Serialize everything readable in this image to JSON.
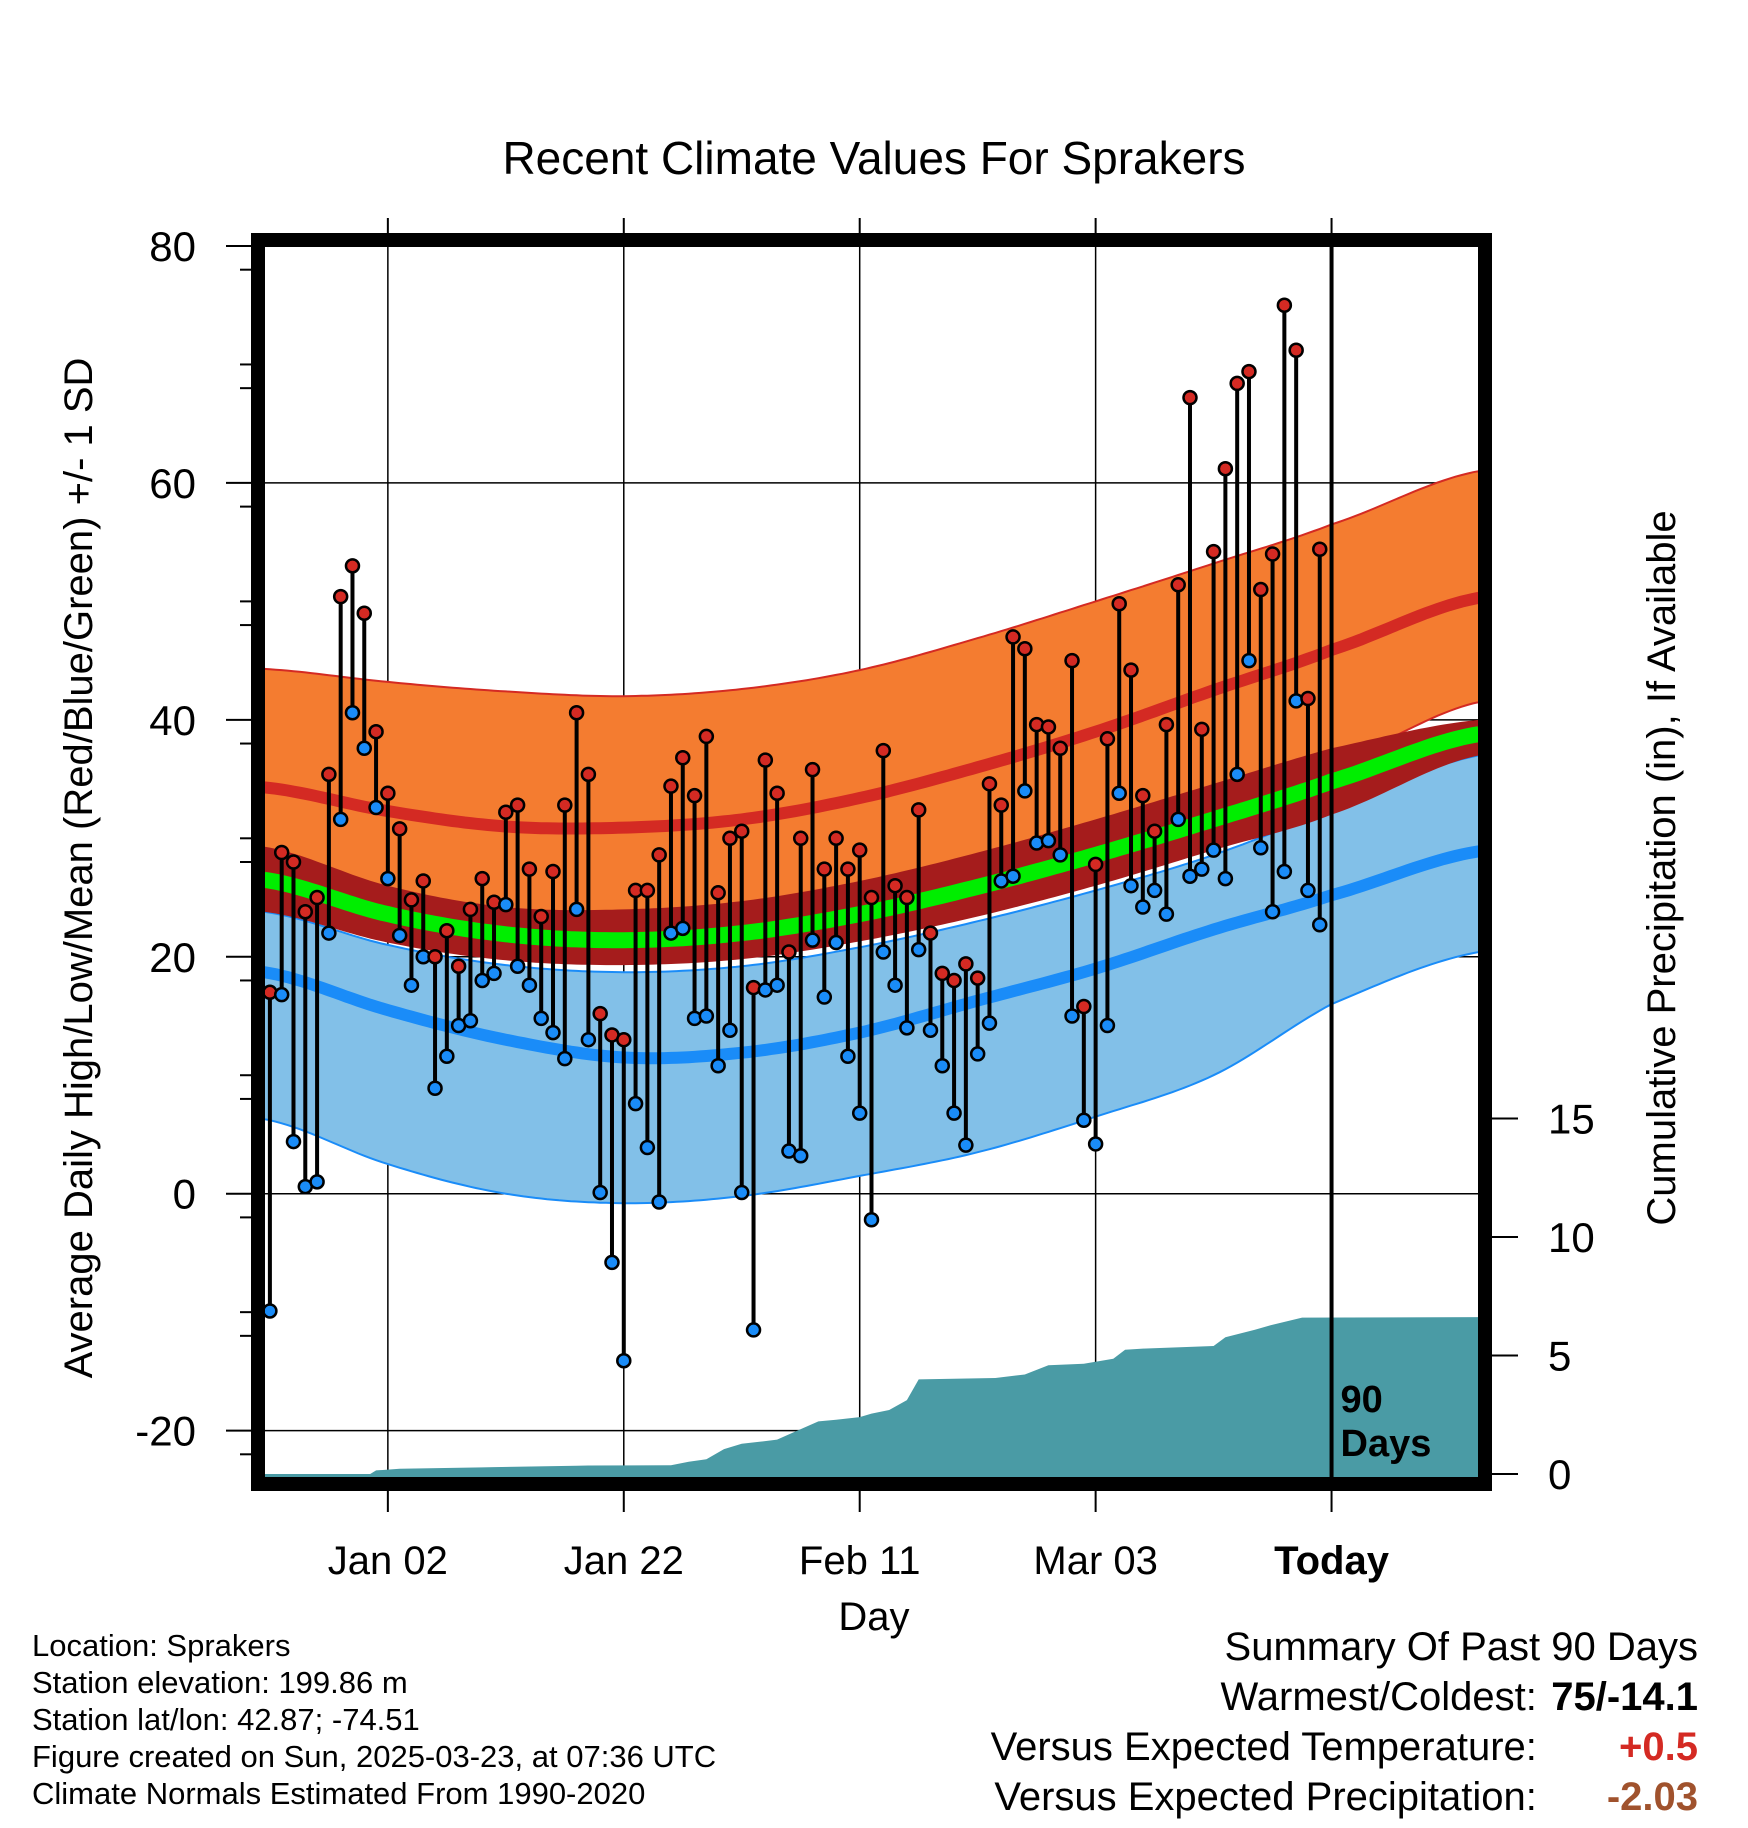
{
  "chart_data": {
    "type": "line",
    "title": "Recent Climate Values For Sprakers",
    "xlabel": "Day",
    "ylabel": "Average Daily High/Low/Mean (Red/Blue/Green) +/- 1 SD",
    "y2label": "Cumulative Precipitation (in), If Available",
    "ylim": [
      -24,
      80
    ],
    "y2lim": [
      0,
      20
    ],
    "xlim": [
      -10.5,
      92.5
    ],
    "yticks": [
      "80",
      "60",
      "40",
      "20",
      "0",
      "-20"
    ],
    "y2ticks": [
      "15",
      "10",
      "5",
      "0"
    ],
    "xticks": [
      {
        "pos": 0,
        "label": "Jan 02"
      },
      {
        "pos": 20,
        "label": "Jan 22"
      },
      {
        "pos": 40,
        "label": "Feb 11"
      },
      {
        "pos": 60,
        "label": "Mar 03"
      },
      {
        "pos": 80,
        "label": "Today"
      }
    ],
    "days_label": "90 Days",
    "grid": true,
    "colors": {
      "high_band": "#f47c30",
      "high_line": "#d42a23",
      "low_band": "#82c0e8",
      "low_line": "#1a8cf8",
      "mean_band": "#a51c1c",
      "mean_line": "#00ee00",
      "precip": "#4a9ba5",
      "high_marker": "#d42a23",
      "low_marker": "#1a8cf8",
      "summary_temp": "#d42a23",
      "summary_precip": "#a0522d"
    },
    "normals": {
      "x": [
        -10.5,
        0,
        10,
        20,
        30,
        40,
        50,
        60,
        70,
        80,
        92.5
      ],
      "high_upper": [
        44.3,
        43.2,
        42.4,
        42.0,
        42.6,
        44.2,
        46.9,
        50.0,
        53.2,
        56.5,
        61.0
      ],
      "high_mean": [
        34.3,
        32.3,
        31.0,
        30.9,
        31.6,
        33.4,
        36.0,
        39.0,
        42.5,
        45.9,
        50.3
      ],
      "high_lower": [
        24.3,
        21.8,
        20.1,
        19.7,
        20.7,
        22.9,
        25.9,
        29.5,
        32.8,
        36.2,
        41.5
      ],
      "mean_upper": [
        29.3,
        26.0,
        24.2,
        24.0,
        24.7,
        26.4,
        28.8,
        31.6,
        34.6,
        37.6,
        40.0
      ],
      "mean_mean": [
        26.5,
        23.6,
        21.9,
        21.4,
        22.0,
        23.6,
        25.9,
        28.6,
        31.6,
        34.8,
        38.8
      ],
      "mean_lower": [
        23.8,
        21.2,
        19.7,
        19.3,
        19.8,
        21.3,
        23.4,
        26.0,
        29.0,
        32.0,
        37.0
      ],
      "low_upper": [
        23.8,
        21.0,
        19.3,
        18.7,
        19.2,
        20.8,
        23.0,
        25.6,
        28.6,
        32.5,
        37.0
      ],
      "low_mean": [
        18.7,
        15.5,
        13.0,
        11.5,
        11.9,
        13.6,
        16.3,
        19.0,
        22.3,
        25.2,
        28.9
      ],
      "low_lower": [
        6.3,
        2.5,
        0.0,
        -0.8,
        -0.2,
        1.5,
        3.5,
        6.5,
        10.0,
        16.0,
        20.4
      ]
    },
    "daily": {
      "x_start": -10,
      "high": [
        17.0,
        28.8,
        28.0,
        23.8,
        25.0,
        35.4,
        50.4,
        53.0,
        49.0,
        39.0,
        33.8,
        30.8,
        24.8,
        26.4,
        20.0,
        22.2,
        19.2,
        24.0,
        26.6,
        24.6,
        32.2,
        32.8,
        27.4,
        23.4,
        27.2,
        32.8,
        40.6,
        35.4,
        15.2,
        13.4,
        13.0,
        25.6,
        25.6,
        28.6,
        34.4,
        36.8,
        33.6,
        38.6,
        25.4,
        30.0,
        30.6,
        17.4,
        36.6,
        33.8,
        20.4,
        30.0,
        35.8,
        27.4,
        30.0,
        27.4,
        29.0,
        25.0,
        37.4,
        26.0,
        25.0,
        32.4,
        22.0,
        18.6,
        18.0,
        19.4,
        18.2,
        34.6,
        32.8,
        47.0,
        46.0,
        39.6,
        39.4,
        37.6,
        45.0,
        15.8,
        27.8,
        38.4,
        49.8,
        44.2,
        33.6,
        30.6,
        39.6,
        51.4,
        67.2,
        39.2,
        54.2,
        61.2,
        68.4,
        69.4,
        51.0,
        54.0,
        75.0,
        71.2,
        41.8,
        54.4
      ],
      "low": [
        -9.9,
        16.8,
        4.4,
        0.6,
        1.0,
        22.0,
        31.6,
        40.6,
        37.6,
        32.6,
        26.6,
        21.8,
        17.6,
        20.0,
        8.9,
        11.6,
        14.2,
        14.6,
        18.0,
        18.6,
        24.4,
        19.2,
        17.6,
        14.8,
        13.6,
        11.4,
        24.0,
        13.0,
        0.1,
        -5.8,
        -14.1,
        7.6,
        3.9,
        -0.7,
        22.0,
        22.4,
        14.8,
        15.0,
        10.8,
        13.8,
        0.1,
        -11.5,
        17.2,
        17.6,
        3.6,
        3.2,
        21.4,
        16.6,
        21.2,
        11.6,
        6.8,
        -2.2,
        20.4,
        17.6,
        14.0,
        20.6,
        13.8,
        10.8,
        6.8,
        4.1,
        11.8,
        14.4,
        26.4,
        26.8,
        34.0,
        29.6,
        29.8,
        28.6,
        15.0,
        6.2,
        4.2,
        14.2,
        33.8,
        26.0,
        24.2,
        25.6,
        23.6,
        31.6,
        26.8,
        27.4,
        29.0,
        26.6,
        35.4,
        45.0,
        29.2,
        23.8,
        27.2,
        41.6,
        25.6,
        22.7
      ]
    },
    "precip": {
      "x": [
        -10.5,
        -1.5,
        -1.0,
        1.0,
        8.0,
        9.0,
        16.0,
        17.0,
        24.0,
        25.5,
        27.0,
        28.5,
        30.0,
        31.5,
        33.0,
        34.5,
        36.5,
        38.0,
        40.0,
        41.0,
        42.5,
        44.0,
        45.0,
        51.5,
        54.0,
        56.0,
        59.0,
        61.5,
        62.5,
        64.0,
        70.0,
        71.0,
        73.5,
        75.0,
        77.5,
        92.5
      ],
      "y": [
        0.0,
        0.0,
        0.15,
        0.22,
        0.28,
        0.29,
        0.35,
        0.36,
        0.37,
        0.52,
        0.62,
        1.05,
        1.28,
        1.36,
        1.45,
        1.78,
        2.22,
        2.29,
        2.4,
        2.55,
        2.7,
        3.12,
        3.99,
        4.05,
        4.2,
        4.59,
        4.65,
        4.86,
        5.24,
        5.29,
        5.4,
        5.77,
        6.09,
        6.3,
        6.6,
        6.62
      ]
    }
  },
  "info": {
    "location": "Location: Sprakers",
    "elevation": "Station elevation: 199.86 m",
    "latlon": "Station lat/lon: 42.87; -74.51",
    "created": "Figure created on Sun, 2025-03-23, at 07:36 UTC",
    "normals": "Climate Normals Estimated From 1990-2020"
  },
  "summary": {
    "heading": "Summary Of Past 90 Days",
    "warm_cold_label": "Warmest/Coldest:",
    "warm_cold_value": "75/-14.1",
    "temp_label": "Versus Expected Temperature:",
    "temp_value": "+0.5",
    "precip_label": "Versus Expected Precipitation:",
    "precip_value": "-2.03"
  }
}
